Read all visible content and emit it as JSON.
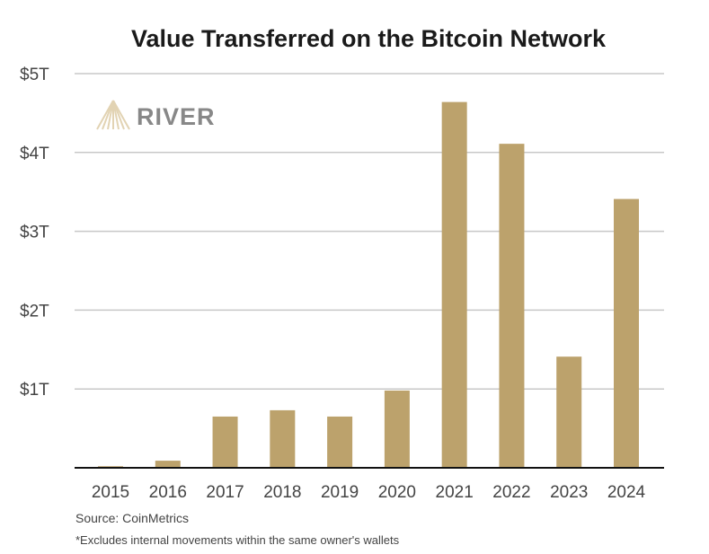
{
  "chart_data": {
    "type": "bar",
    "title": "Value Transferred on the Bitcoin Network",
    "categories": [
      "2015",
      "2016",
      "2017",
      "2018",
      "2019",
      "2020",
      "2021",
      "2022",
      "2023",
      "2024"
    ],
    "values": [
      0.02,
      0.09,
      0.65,
      0.73,
      0.65,
      0.98,
      4.64,
      4.11,
      1.41,
      3.41
    ],
    "unit": "trillion USD",
    "ylim": [
      0,
      5
    ],
    "yticks": [
      {
        "v": 1,
        "label": "$1T"
      },
      {
        "v": 2,
        "label": "$2T"
      },
      {
        "v": 3,
        "label": "$3T"
      },
      {
        "v": 4,
        "label": "$4T"
      },
      {
        "v": 5,
        "label": "$5T"
      }
    ],
    "xlabel": "",
    "ylabel": "",
    "grid": true,
    "bar_color": "#bca26c",
    "source": "Source: CoinMetrics",
    "footnote": "*Excludes internal movements within the same owner's wallets",
    "logo_text": "RIVER"
  }
}
